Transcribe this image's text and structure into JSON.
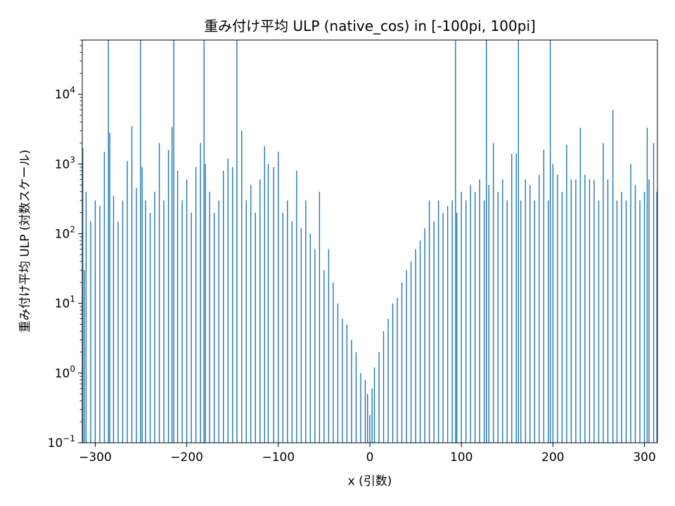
{
  "chart_data": {
    "type": "bar",
    "title": "重み付け平均 ULP (native_cos) in [-100pi, 100pi]",
    "xlabel": "x (引数)",
    "ylabel": "重み付け平均 ULP (対数スケール)",
    "xlim": [
      -314.16,
      314.16
    ],
    "ylim": [
      0.1,
      60000
    ],
    "yscale": "log",
    "x_ticks": [
      -300,
      -200,
      -100,
      0,
      100,
      200,
      300
    ],
    "x_tick_labels": [
      "−300",
      "−200",
      "−100",
      "0",
      "100",
      "200",
      "300"
    ],
    "y_ticks": [
      0.1,
      1,
      10,
      100,
      1000,
      10000
    ],
    "y_tick_labels": [
      {
        "base": "10",
        "exp": "−1"
      },
      {
        "base": "10",
        "exp": "0"
      },
      {
        "base": "10",
        "exp": "1"
      },
      {
        "base": "10",
        "exp": "2"
      },
      {
        "base": "10",
        "exp": "3"
      },
      {
        "base": "10",
        "exp": "4"
      }
    ],
    "bar_color": "#1f77b4",
    "series": [
      {
        "x": [
          -313.6,
          -312.0,
          -310.0,
          -305.0,
          -300.0,
          -295.0,
          -290.0,
          -285.6,
          -284.1,
          -280.0,
          -275.0,
          -270.0,
          -265.0,
          -260.0,
          -255.0,
          -250.5,
          -248.7,
          -245.0,
          -240.0,
          -235.0,
          -230.0,
          -225.0,
          -220.0,
          -216.1,
          -214.2,
          -210.0,
          -205.0,
          -200.0,
          -195.0,
          -190.0,
          -185.0,
          -181.1,
          -179.6,
          -175.0,
          -170.0,
          -165.0,
          -160.0,
          -155.0,
          -150.0,
          -145.2,
          -140.0,
          -135.0,
          -130.0,
          -125.0,
          -120.0,
          -115.0,
          -111.0,
          -105.0,
          -100.0,
          -95.0,
          -90.0,
          -85.0,
          -80.0,
          -75.0,
          -70.0,
          -65.0,
          -60.0,
          -55.0,
          -50.0,
          -45.0,
          -40.0,
          -35.0,
          -30.0,
          -25.0,
          -20.0,
          -15.0,
          -10.0,
          -5.0,
          -2.5,
          0.0,
          2.5,
          5.0,
          10.0,
          15.0,
          20.0,
          25.0,
          30.0,
          35.0,
          40.0,
          45.0,
          50.0,
          55.0,
          60.0,
          65.0,
          70.0,
          75.0,
          80.0,
          85.0,
          90.0,
          93.6,
          95.0,
          100.0,
          105.0,
          110.0,
          115.0,
          120.0,
          125.0,
          127.3,
          130.0,
          135.0,
          140.0,
          145.0,
          150.0,
          155.0,
          160.0,
          162.3,
          165.0,
          170.0,
          175.0,
          180.0,
          185.0,
          190.0,
          195.0,
          197.1,
          200.0,
          205.0,
          210.0,
          215.0,
          220.0,
          225.0,
          230.0,
          235.0,
          240.0,
          245.0,
          250.0,
          255.0,
          260.0,
          265.5,
          270.0,
          275.0,
          280.0,
          285.0,
          290.0,
          295.0,
          300.0,
          303.0,
          305.0,
          310.0,
          313.6
        ],
        "values": [
          1700,
          30,
          400,
          150,
          300,
          250,
          1500,
          60000,
          2800,
          350,
          150,
          300,
          1100,
          3500,
          450,
          60000,
          900,
          300,
          200,
          400,
          2000,
          300,
          1600,
          3400,
          60000,
          800,
          300,
          600,
          200,
          900,
          2000,
          60000,
          1000,
          400,
          200,
          300,
          800,
          1200,
          900,
          60000,
          3000,
          300,
          500,
          200,
          600,
          1800,
          1000,
          900,
          1500,
          200,
          300,
          150,
          800,
          120,
          300,
          100,
          60,
          400,
          30,
          60,
          20,
          10,
          6,
          5,
          3,
          2,
          1,
          0.8,
          0.5,
          0.25,
          0.6,
          1.2,
          2,
          4,
          6,
          10,
          12,
          20,
          30,
          40,
          60,
          80,
          120,
          300,
          150,
          300,
          200,
          250,
          300,
          60000,
          200,
          400,
          300,
          500,
          400,
          600,
          300,
          60000,
          500,
          2000,
          400,
          600,
          300,
          1400,
          1400,
          60000,
          300,
          600,
          500,
          300,
          700,
          1600,
          300,
          60000,
          1000,
          700,
          400,
          1900,
          600,
          600,
          3300,
          700,
          600,
          600,
          300,
          2000,
          600,
          6000,
          300,
          400,
          300,
          1000,
          500,
          300,
          400,
          3300,
          600,
          2000,
          400
        ]
      }
    ]
  }
}
